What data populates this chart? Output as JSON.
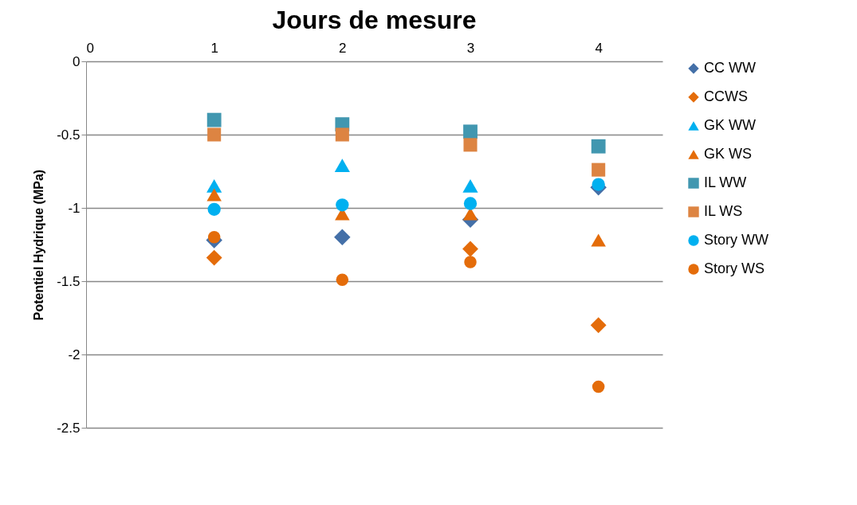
{
  "chart_data": {
    "type": "scatter",
    "title": "Jours de mesure",
    "ylabel": "Potentiel Hydrique (MPa)",
    "x": [
      1,
      2,
      3,
      4
    ],
    "xlim": [
      0,
      4.5
    ],
    "xticks": [
      0,
      1,
      2,
      3,
      4
    ],
    "ylim": [
      -2.5,
      0
    ],
    "yticks": [
      -2.5,
      -2,
      -1.5,
      -1,
      -0.5,
      0
    ],
    "grid": "y",
    "legend": "right",
    "series": [
      {
        "name": "CC WW",
        "color": "#4470a8",
        "marker": "diamond",
        "values": [
          -1.22,
          -1.2,
          -1.08,
          -0.86
        ]
      },
      {
        "name": "CCWS",
        "color": "#e46c0a",
        "marker": "diamond",
        "values": [
          -1.34,
          null,
          -1.28,
          -1.8
        ]
      },
      {
        "name": "GK WW",
        "color": "#00b0f0",
        "marker": "triangle",
        "values": [
          -0.85,
          -0.71,
          -0.85,
          null
        ]
      },
      {
        "name": "GK WS",
        "color": "#e46c0a",
        "marker": "triangle",
        "values": [
          -0.91,
          -1.04,
          -1.04,
          -1.22
        ]
      },
      {
        "name": "IL WW",
        "color": "#4197b0",
        "marker": "square",
        "values": [
          -0.4,
          -0.43,
          -0.48,
          -0.58
        ]
      },
      {
        "name": "IL WS",
        "color": "#dd8442",
        "marker": "square",
        "values": [
          -0.5,
          -0.5,
          -0.57,
          -0.74
        ]
      },
      {
        "name": "Story WW",
        "color": "#00b0f0",
        "marker": "circle",
        "values": [
          -1.01,
          -0.98,
          -0.97,
          -0.84
        ]
      },
      {
        "name": "Story WS",
        "color": "#e46c0a",
        "marker": "circle",
        "values": [
          -1.2,
          -1.49,
          -1.37,
          -2.22
        ]
      }
    ]
  }
}
